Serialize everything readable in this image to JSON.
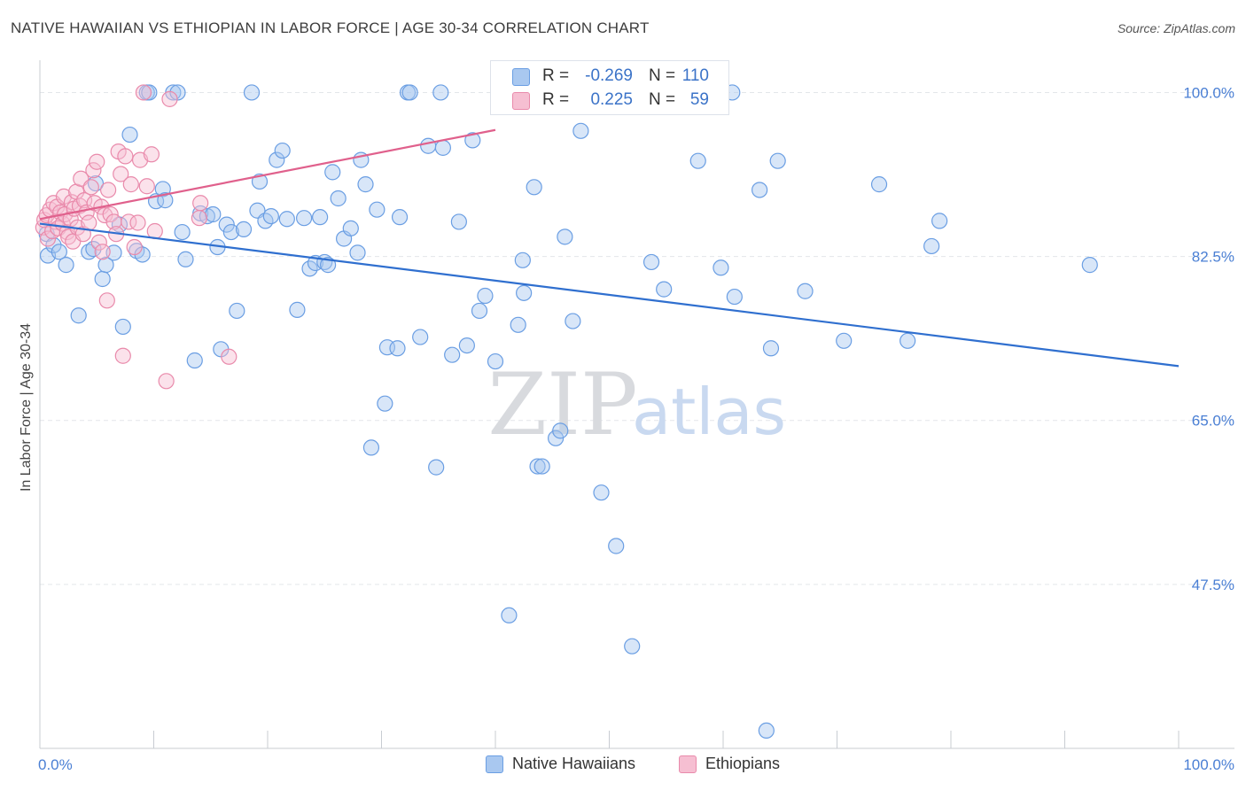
{
  "title": "NATIVE HAWAIIAN VS ETHIOPIAN IN LABOR FORCE | AGE 30-34 CORRELATION CHART",
  "source": "Source: ZipAtlas.com",
  "watermark": {
    "zip": "ZIP",
    "atlas": "atlas"
  },
  "colors": {
    "blue_fill": "#a9c8f0",
    "blue_stroke": "#6a9ee3",
    "blue_line": "#2f6fcf",
    "pink_fill": "#f6bfd2",
    "pink_stroke": "#e98aab",
    "pink_line": "#e0608c",
    "tick_text": "#4a7fd4",
    "grid": "#e3e6ea"
  },
  "stats": [
    {
      "r_label": "R =",
      "r_value": "-0.269",
      "n_label": "N =",
      "n_value": "110"
    },
    {
      "r_label": "R =",
      "r_value": "0.225",
      "n_label": "N =",
      "n_value": "59"
    }
  ],
  "legend": {
    "series_a": "Native Hawaiians",
    "series_b": "Ethiopians"
  },
  "chart_data": {
    "type": "scatter",
    "title": "NATIVE HAWAIIAN VS ETHIOPIAN IN LABOR FORCE | AGE 30-34 CORRELATION CHART",
    "xlabel": "",
    "ylabel": "In Labor Force | Age 30-34",
    "xlim": [
      0,
      100
    ],
    "ylim": [
      30,
      102.5
    ],
    "x_tick_labels": [
      {
        "value": 0,
        "label": "0.0%"
      },
      {
        "value": 100,
        "label": "100.0%"
      }
    ],
    "y_tick_labels": [
      {
        "value": 100,
        "label": "100.0%"
      },
      {
        "value": 82.5,
        "label": "82.5%"
      },
      {
        "value": 65,
        "label": "65.0%"
      },
      {
        "value": 47.5,
        "label": "47.5%"
      }
    ],
    "series": [
      {
        "name": "Native Hawaiians",
        "trend": {
          "x": [
            0,
            100
          ],
          "y": [
            86.0,
            70.8
          ]
        },
        "points": [
          [
            0.6,
            84.9
          ],
          [
            0.7,
            82.6
          ],
          [
            1.2,
            83.7
          ],
          [
            1.7,
            83.0
          ],
          [
            2.3,
            81.6
          ],
          [
            3.4,
            76.2
          ],
          [
            4.3,
            83.0
          ],
          [
            4.7,
            83.3
          ],
          [
            4.9,
            90.3
          ],
          [
            5.5,
            80.1
          ],
          [
            5.8,
            81.6
          ],
          [
            6.5,
            82.9
          ],
          [
            7.0,
            85.9
          ],
          [
            7.3,
            75.0
          ],
          [
            7.9,
            95.5
          ],
          [
            8.5,
            83.1
          ],
          [
            9.0,
            82.7
          ],
          [
            9.4,
            100.0
          ],
          [
            9.6,
            100.0
          ],
          [
            10.2,
            88.4
          ],
          [
            10.8,
            89.7
          ],
          [
            11.0,
            88.5
          ],
          [
            11.7,
            100.0
          ],
          [
            12.1,
            100.0
          ],
          [
            12.5,
            85.1
          ],
          [
            12.8,
            82.2
          ],
          [
            13.6,
            71.4
          ],
          [
            14.1,
            87.1
          ],
          [
            14.7,
            86.8
          ],
          [
            15.2,
            87.0
          ],
          [
            15.6,
            83.5
          ],
          [
            15.9,
            72.6
          ],
          [
            16.4,
            85.9
          ],
          [
            16.8,
            85.1
          ],
          [
            17.3,
            76.7
          ],
          [
            17.9,
            85.4
          ],
          [
            18.6,
            100.0
          ],
          [
            19.1,
            87.4
          ],
          [
            19.3,
            90.5
          ],
          [
            19.8,
            86.3
          ],
          [
            20.3,
            86.8
          ],
          [
            20.8,
            92.8
          ],
          [
            21.3,
            93.8
          ],
          [
            21.7,
            86.5
          ],
          [
            22.6,
            76.8
          ],
          [
            23.2,
            86.6
          ],
          [
            23.7,
            81.2
          ],
          [
            24.2,
            81.8
          ],
          [
            24.6,
            86.7
          ],
          [
            25.0,
            81.9
          ],
          [
            25.3,
            81.6
          ],
          [
            25.7,
            91.5
          ],
          [
            26.2,
            88.7
          ],
          [
            26.7,
            84.4
          ],
          [
            27.3,
            85.5
          ],
          [
            27.9,
            82.9
          ],
          [
            28.2,
            92.8
          ],
          [
            28.6,
            90.2
          ],
          [
            29.1,
            62.1
          ],
          [
            29.6,
            87.5
          ],
          [
            30.3,
            66.8
          ],
          [
            30.5,
            72.8
          ],
          [
            31.4,
            72.7
          ],
          [
            31.6,
            86.7
          ],
          [
            32.3,
            100.0
          ],
          [
            32.5,
            100.0
          ],
          [
            33.4,
            73.9
          ],
          [
            34.1,
            94.3
          ],
          [
            34.8,
            60.0
          ],
          [
            35.2,
            100.0
          ],
          [
            35.4,
            94.1
          ],
          [
            36.2,
            72.0
          ],
          [
            36.8,
            86.2
          ],
          [
            37.5,
            73.0
          ],
          [
            38.0,
            94.9
          ],
          [
            38.6,
            76.7
          ],
          [
            39.1,
            78.3
          ],
          [
            40.0,
            71.3
          ],
          [
            41.2,
            44.2
          ],
          [
            42.0,
            75.2
          ],
          [
            42.4,
            82.1
          ],
          [
            42.5,
            78.6
          ],
          [
            43.4,
            89.9
          ],
          [
            43.7,
            60.1
          ],
          [
            44.1,
            60.1
          ],
          [
            45.3,
            63.1
          ],
          [
            45.7,
            63.9
          ],
          [
            46.1,
            84.6
          ],
          [
            46.8,
            75.6
          ],
          [
            47.5,
            95.9
          ],
          [
            49.3,
            57.3
          ],
          [
            50.6,
            51.6
          ],
          [
            52.0,
            40.9
          ],
          [
            53.7,
            81.9
          ],
          [
            54.8,
            79.0
          ],
          [
            57.8,
            92.7
          ],
          [
            59.8,
            81.3
          ],
          [
            60.8,
            100.0
          ],
          [
            61.0,
            78.2
          ],
          [
            63.2,
            89.6
          ],
          [
            63.8,
            31.9
          ],
          [
            64.2,
            72.7
          ],
          [
            64.8,
            92.7
          ],
          [
            67.2,
            78.8
          ],
          [
            70.6,
            73.5
          ],
          [
            73.7,
            90.2
          ],
          [
            76.2,
            73.5
          ],
          [
            78.3,
            83.6
          ],
          [
            79.0,
            86.3
          ],
          [
            92.2,
            81.6
          ]
        ]
      },
      {
        "name": "Ethiopians",
        "trend": {
          "x": [
            0,
            40
          ],
          "y": [
            86.5,
            96.0
          ]
        },
        "points": [
          [
            0.3,
            85.6
          ],
          [
            0.4,
            86.4
          ],
          [
            0.6,
            86.9
          ],
          [
            0.7,
            84.4
          ],
          [
            0.9,
            87.5
          ],
          [
            1.1,
            85.2
          ],
          [
            1.2,
            88.2
          ],
          [
            1.4,
            86.2
          ],
          [
            1.5,
            87.8
          ],
          [
            1.6,
            85.5
          ],
          [
            1.8,
            87.2
          ],
          [
            2.0,
            86.0
          ],
          [
            2.1,
            88.9
          ],
          [
            2.2,
            87.0
          ],
          [
            2.4,
            85.1
          ],
          [
            2.5,
            84.6
          ],
          [
            2.7,
            86.5
          ],
          [
            2.8,
            88.3
          ],
          [
            2.9,
            84.1
          ],
          [
            3.0,
            87.6
          ],
          [
            3.2,
            89.4
          ],
          [
            3.3,
            85.6
          ],
          [
            3.5,
            87.9
          ],
          [
            3.6,
            90.8
          ],
          [
            3.8,
            84.9
          ],
          [
            3.9,
            88.5
          ],
          [
            4.1,
            87.2
          ],
          [
            4.3,
            86.1
          ],
          [
            4.5,
            89.9
          ],
          [
            4.7,
            91.7
          ],
          [
            4.8,
            88.2
          ],
          [
            5.0,
            92.6
          ],
          [
            5.2,
            84.0
          ],
          [
            5.4,
            87.8
          ],
          [
            5.5,
            83.0
          ],
          [
            5.7,
            86.9
          ],
          [
            5.9,
            77.8
          ],
          [
            6.0,
            89.6
          ],
          [
            6.2,
            87.0
          ],
          [
            6.5,
            86.2
          ],
          [
            6.7,
            84.9
          ],
          [
            6.9,
            93.7
          ],
          [
            7.1,
            91.3
          ],
          [
            7.3,
            71.9
          ],
          [
            7.5,
            93.2
          ],
          [
            7.8,
            86.2
          ],
          [
            8.0,
            90.2
          ],
          [
            8.3,
            83.5
          ],
          [
            8.6,
            86.1
          ],
          [
            8.8,
            92.8
          ],
          [
            9.1,
            100.0
          ],
          [
            9.4,
            90.0
          ],
          [
            9.8,
            93.4
          ],
          [
            10.1,
            85.2
          ],
          [
            11.1,
            69.2
          ],
          [
            11.4,
            99.3
          ],
          [
            14.0,
            86.6
          ],
          [
            14.1,
            88.2
          ],
          [
            16.6,
            71.8
          ]
        ]
      }
    ]
  }
}
